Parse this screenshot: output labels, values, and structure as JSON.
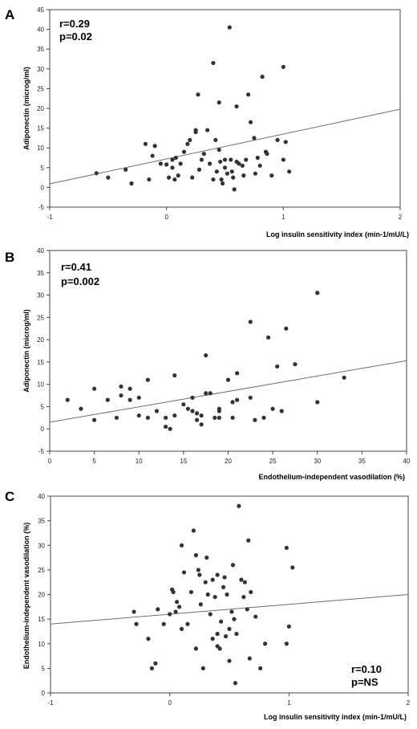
{
  "chart_data": [
    {
      "panel": "A",
      "type": "scatter",
      "xlabel": "Log insulin sensitivity index (min-1/mU/L)",
      "ylabel": "Adiponectin (microg/ml)",
      "xlim": [
        -1,
        2
      ],
      "ylim": [
        -5,
        45
      ],
      "xticks": [
        -1,
        0,
        1,
        2
      ],
      "yticks": [
        -5,
        0,
        5,
        10,
        15,
        20,
        25,
        30,
        35,
        40,
        45
      ],
      "annotation": [
        "r=0.29",
        "p=0.02"
      ],
      "regression": [
        [
          -1,
          0.9
        ],
        [
          2,
          19.8
        ]
      ],
      "points": [
        [
          -0.6,
          3.6
        ],
        [
          -0.5,
          2.5
        ],
        [
          -0.35,
          4.5
        ],
        [
          -0.3,
          1.0
        ],
        [
          -0.18,
          11.0
        ],
        [
          -0.15,
          2.0
        ],
        [
          -0.12,
          8.0
        ],
        [
          -0.1,
          10.5
        ],
        [
          -0.05,
          6.0
        ],
        [
          0.0,
          5.8
        ],
        [
          0.02,
          2.5
        ],
        [
          0.05,
          7.0
        ],
        [
          0.05,
          5.0
        ],
        [
          0.07,
          2.0
        ],
        [
          0.08,
          7.5
        ],
        [
          0.1,
          3.0
        ],
        [
          0.12,
          6.0
        ],
        [
          0.15,
          9.0
        ],
        [
          0.18,
          11.0
        ],
        [
          0.2,
          12.0
        ],
        [
          0.22,
          2.5
        ],
        [
          0.25,
          14.0
        ],
        [
          0.25,
          14.5
        ],
        [
          0.27,
          23.5
        ],
        [
          0.28,
          4.5
        ],
        [
          0.3,
          7.0
        ],
        [
          0.32,
          8.5
        ],
        [
          0.35,
          14.5
        ],
        [
          0.37,
          6.0
        ],
        [
          0.4,
          2.0
        ],
        [
          0.4,
          31.5
        ],
        [
          0.42,
          12.0
        ],
        [
          0.43,
          4.0
        ],
        [
          0.45,
          21.5
        ],
        [
          0.45,
          9.5
        ],
        [
          0.46,
          6.5
        ],
        [
          0.47,
          2.0
        ],
        [
          0.48,
          1.0
        ],
        [
          0.5,
          5.0
        ],
        [
          0.5,
          7.0
        ],
        [
          0.52,
          3.5
        ],
        [
          0.54,
          40.5
        ],
        [
          0.55,
          7.0
        ],
        [
          0.56,
          4.0
        ],
        [
          0.57,
          2.5
        ],
        [
          0.58,
          -0.5
        ],
        [
          0.6,
          20.5
        ],
        [
          0.6,
          6.5
        ],
        [
          0.62,
          6.0
        ],
        [
          0.65,
          5.5
        ],
        [
          0.66,
          3.0
        ],
        [
          0.68,
          7.0
        ],
        [
          0.7,
          23.5
        ],
        [
          0.72,
          16.5
        ],
        [
          0.75,
          12.5
        ],
        [
          0.76,
          3.5
        ],
        [
          0.78,
          7.5
        ],
        [
          0.8,
          5.5
        ],
        [
          0.82,
          28.0
        ],
        [
          0.85,
          9.0
        ],
        [
          0.86,
          8.5
        ],
        [
          0.9,
          3.0
        ],
        [
          0.95,
          12.0
        ],
        [
          1.0,
          30.5
        ],
        [
          1.0,
          7.0
        ],
        [
          1.02,
          11.5
        ],
        [
          1.05,
          4.0
        ]
      ]
    },
    {
      "panel": "B",
      "type": "scatter",
      "xlabel": "Endothelium-independent vasodilation (%)",
      "ylabel": "Adiponectin (microg/ml)",
      "xlim": [
        0,
        40
      ],
      "ylim": [
        -5,
        40
      ],
      "xticks": [
        0,
        5,
        10,
        15,
        20,
        25,
        30,
        35,
        40
      ],
      "yticks": [
        -5,
        0,
        5,
        10,
        15,
        20,
        25,
        30,
        35,
        40
      ],
      "annotation": [
        "r=0.41",
        "p=0.002"
      ],
      "regression": [
        [
          0,
          1.5
        ],
        [
          40,
          15.3
        ]
      ],
      "points": [
        [
          2.0,
          6.5
        ],
        [
          3.5,
          4.5
        ],
        [
          5.0,
          9.0
        ],
        [
          5.0,
          2.0
        ],
        [
          6.5,
          6.5
        ],
        [
          7.5,
          2.5
        ],
        [
          8.0,
          9.5
        ],
        [
          8.0,
          7.5
        ],
        [
          9.0,
          9.0
        ],
        [
          9.0,
          6.5
        ],
        [
          10.0,
          7.0
        ],
        [
          10.0,
          3.0
        ],
        [
          11.0,
          11.0
        ],
        [
          11.0,
          2.5
        ],
        [
          12.0,
          4.0
        ],
        [
          13.0,
          2.5
        ],
        [
          13.0,
          0.5
        ],
        [
          13.5,
          0.0
        ],
        [
          14.0,
          12.0
        ],
        [
          14.0,
          3.0
        ],
        [
          15.0,
          5.5
        ],
        [
          15.5,
          4.5
        ],
        [
          16.0,
          7.0
        ],
        [
          16.0,
          4.0
        ],
        [
          16.5,
          3.5
        ],
        [
          16.5,
          2.0
        ],
        [
          17.0,
          1.0
        ],
        [
          17.0,
          3.0
        ],
        [
          17.5,
          16.5
        ],
        [
          17.5,
          8.0
        ],
        [
          18.0,
          8.0
        ],
        [
          18.5,
          2.5
        ],
        [
          19.0,
          4.5
        ],
        [
          19.0,
          4.0
        ],
        [
          19.0,
          2.5
        ],
        [
          20.0,
          11.0
        ],
        [
          20.5,
          6.0
        ],
        [
          20.5,
          2.5
        ],
        [
          21.0,
          12.5
        ],
        [
          21.0,
          6.5
        ],
        [
          22.5,
          24.0
        ],
        [
          22.5,
          7.0
        ],
        [
          23.0,
          2.0
        ],
        [
          24.0,
          2.5
        ],
        [
          24.5,
          20.5
        ],
        [
          25.0,
          4.5
        ],
        [
          25.5,
          14.0
        ],
        [
          26.0,
          4.0
        ],
        [
          26.5,
          22.5
        ],
        [
          27.5,
          14.5
        ],
        [
          30.0,
          30.5
        ],
        [
          30.0,
          6.0
        ],
        [
          33.0,
          11.5
        ]
      ]
    },
    {
      "panel": "C",
      "type": "scatter",
      "xlabel": "Log insulin sensitivity index (min-1/mU/L)",
      "ylabel": "Endothelium-independent vasodilation (%)",
      "xlim": [
        -1,
        2
      ],
      "ylim": [
        0,
        40
      ],
      "xticks": [
        -1,
        0,
        1,
        2
      ],
      "yticks": [
        0,
        5,
        10,
        15,
        20,
        25,
        30,
        35,
        40
      ],
      "annotation": [
        "r=0.10",
        "p=NS"
      ],
      "regression": [
        [
          -1,
          14.0
        ],
        [
          2,
          20.0
        ]
      ],
      "points": [
        [
          -0.3,
          16.5
        ],
        [
          -0.28,
          14.0
        ],
        [
          -0.18,
          11.0
        ],
        [
          -0.15,
          5.0
        ],
        [
          -0.12,
          6.0
        ],
        [
          -0.1,
          17.0
        ],
        [
          -0.05,
          14.0
        ],
        [
          0.0,
          16.0
        ],
        [
          0.02,
          21.0
        ],
        [
          0.03,
          20.5
        ],
        [
          0.05,
          16.5
        ],
        [
          0.06,
          18.5
        ],
        [
          0.08,
          17.5
        ],
        [
          0.1,
          13.0
        ],
        [
          0.1,
          30.0
        ],
        [
          0.12,
          24.5
        ],
        [
          0.15,
          14.0
        ],
        [
          0.18,
          20.5
        ],
        [
          0.2,
          33.0
        ],
        [
          0.22,
          28.0
        ],
        [
          0.22,
          9.0
        ],
        [
          0.24,
          25.0
        ],
        [
          0.25,
          24.0
        ],
        [
          0.26,
          18.0
        ],
        [
          0.28,
          5.0
        ],
        [
          0.3,
          22.5
        ],
        [
          0.31,
          27.5
        ],
        [
          0.32,
          20.0
        ],
        [
          0.34,
          16.0
        ],
        [
          0.36,
          23.0
        ],
        [
          0.36,
          11.0
        ],
        [
          0.38,
          19.5
        ],
        [
          0.4,
          24.0
        ],
        [
          0.4,
          9.5
        ],
        [
          0.4,
          12.0
        ],
        [
          0.42,
          9.0
        ],
        [
          0.43,
          14.5
        ],
        [
          0.45,
          21.5
        ],
        [
          0.46,
          23.5
        ],
        [
          0.47,
          11.5
        ],
        [
          0.48,
          20.0
        ],
        [
          0.5,
          13.0
        ],
        [
          0.5,
          6.5
        ],
        [
          0.52,
          16.5
        ],
        [
          0.53,
          26.0
        ],
        [
          0.54,
          15.0
        ],
        [
          0.55,
          2.0
        ],
        [
          0.56,
          12.0
        ],
        [
          0.58,
          38.0
        ],
        [
          0.6,
          23.0
        ],
        [
          0.62,
          19.5
        ],
        [
          0.63,
          22.5
        ],
        [
          0.65,
          17.0
        ],
        [
          0.66,
          31.0
        ],
        [
          0.67,
          7.0
        ],
        [
          0.68,
          20.5
        ],
        [
          0.72,
          15.5
        ],
        [
          0.76,
          5.0
        ],
        [
          0.8,
          10.0
        ],
        [
          0.98,
          29.5
        ],
        [
          0.98,
          10.0
        ],
        [
          1.0,
          13.5
        ],
        [
          1.03,
          25.5
        ]
      ]
    }
  ],
  "panels": [
    "A",
    "B",
    "C"
  ],
  "colors": {
    "point": "#333333",
    "axis": "#444444",
    "line": "#6e6e6e",
    "background": "#ffffff"
  }
}
